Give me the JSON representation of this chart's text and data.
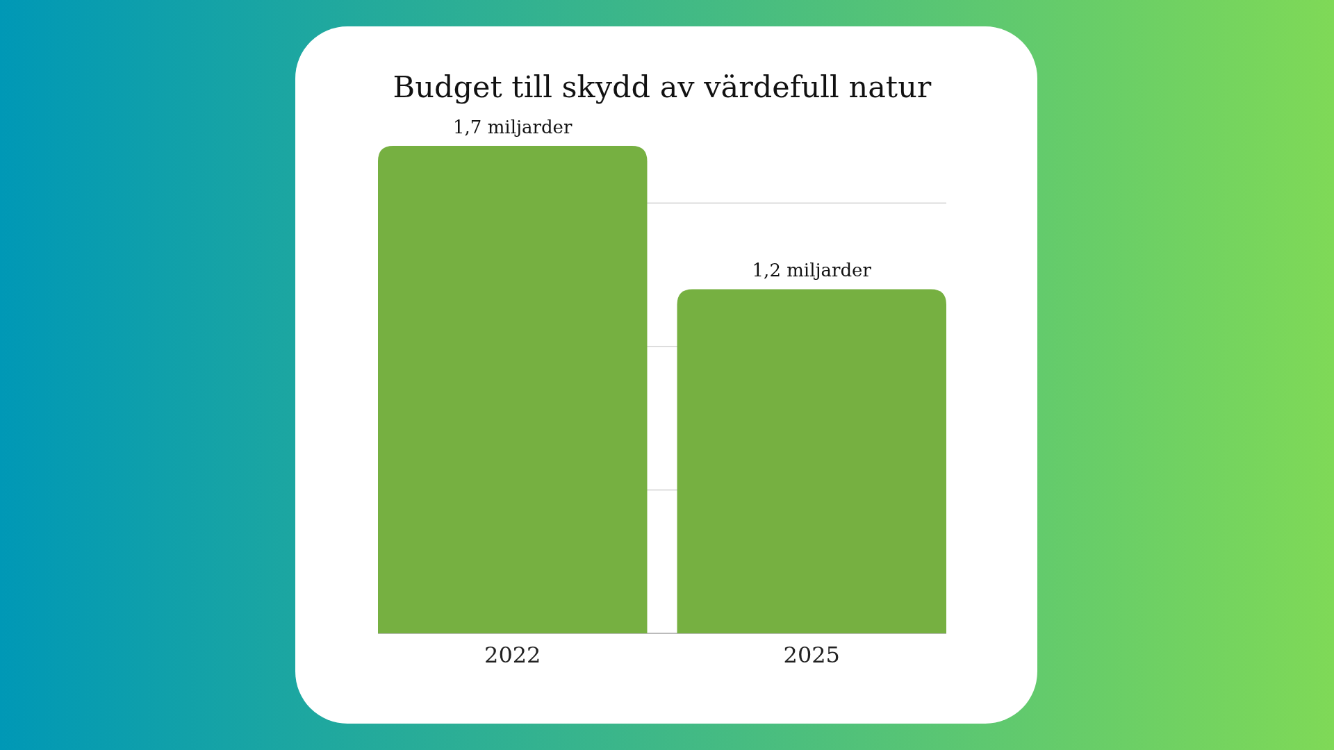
{
  "chart_data": {
    "type": "bar",
    "title": "Budget till skydd av värdefull natur",
    "categories": [
      "2022",
      "2025"
    ],
    "values": [
      1.7,
      1.2
    ],
    "value_labels": [
      "1,7 miljarder",
      "1,2 miljarder"
    ],
    "color": "#76b041",
    "ylim": [
      0,
      1.7
    ],
    "yticks": [
      {
        "value": 0,
        "label": null
      },
      {
        "value": 0.5,
        "label": null
      },
      {
        "value": 1,
        "label": null
      },
      {
        "value": 1.5,
        "label": null
      }
    ],
    "grid": "y",
    "tick_labels": "x"
  }
}
